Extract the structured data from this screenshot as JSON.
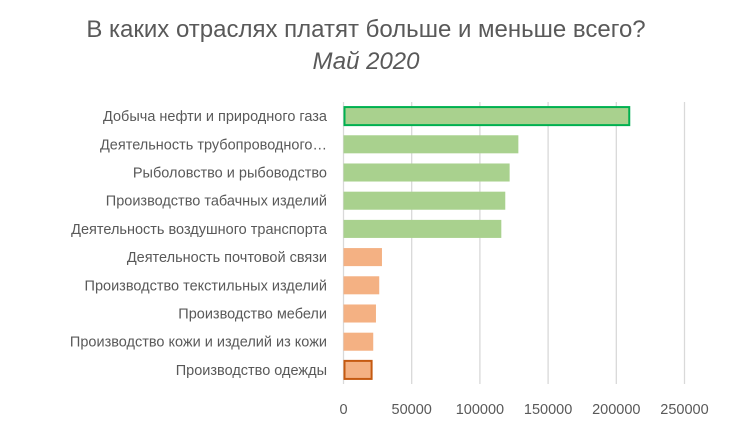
{
  "chart_data": {
    "type": "bar",
    "orientation": "horizontal",
    "title": "В каких отраслях платят больше и меньше всего?",
    "title_italic_suffix": "Май 2020",
    "categories": [
      "Добыча нефти и природного газа",
      "Деятельность трубопроводного…",
      "Рыболовство и рыбоводство",
      "Производство табачных изделий",
      "Деятельность воздушного транспорта",
      "Деятельность почтовой связи",
      "Производство текстильных изделий",
      "Производство мебели",
      "Производство кожи и изделий из кожи",
      "Производство одежды"
    ],
    "values": [
      209500,
      128200,
      121800,
      118600,
      115700,
      28200,
      26200,
      23800,
      21800,
      20600
    ],
    "bar_colors": [
      "#a9d18e",
      "#a9d18e",
      "#a9d18e",
      "#a9d18e",
      "#a9d18e",
      "#f4b183",
      "#f4b183",
      "#f4b183",
      "#f4b183",
      "#f4b183"
    ],
    "highlight_borders": {
      "0": "#00b050",
      "9": "#c55a11"
    },
    "xlim": [
      0,
      250000
    ],
    "xticks": [
      "0",
      "50000",
      "100000",
      "150000",
      "200000",
      "250000"
    ],
    "grid": true,
    "xlabel": "",
    "ylabel": ""
  }
}
